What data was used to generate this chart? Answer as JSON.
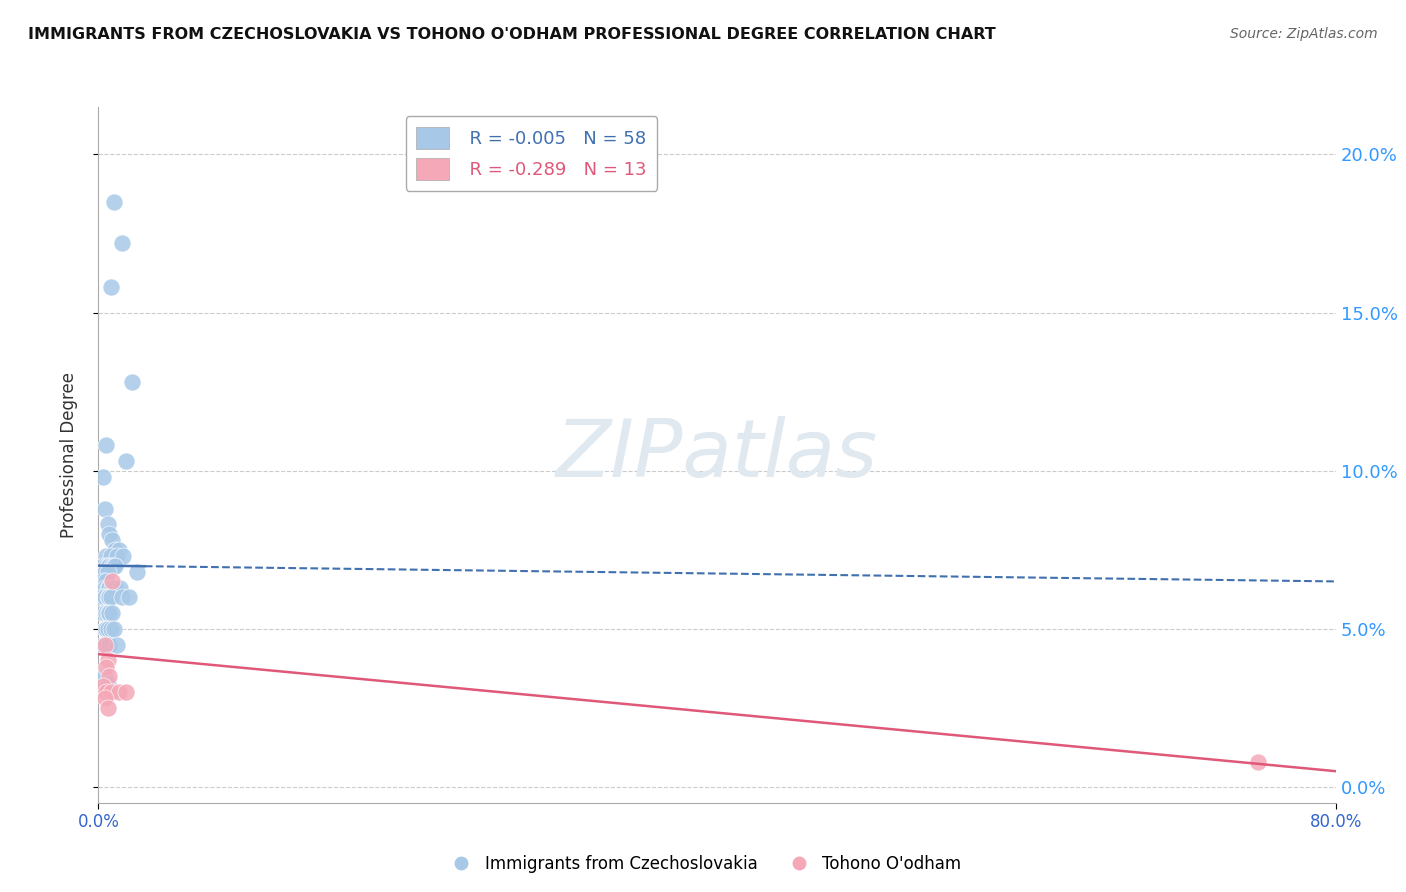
{
  "title": "IMMIGRANTS FROM CZECHOSLOVAKIA VS TOHONO O'ODHAM PROFESSIONAL DEGREE CORRELATION CHART",
  "source": "Source: ZipAtlas.com",
  "ylabel": "Professional Degree",
  "yticks": [
    "0.0%",
    "5.0%",
    "10.0%",
    "15.0%",
    "20.0%"
  ],
  "ytick_vals": [
    0.0,
    5.0,
    10.0,
    15.0,
    20.0
  ],
  "xlim": [
    0.0,
    80.0
  ],
  "ylim": [
    -0.5,
    21.5
  ],
  "legend_blue_r": "R = -0.005",
  "legend_blue_n": "N = 58",
  "legend_pink_r": "R = -0.289",
  "legend_pink_n": "N = 13",
  "blue_color": "#a8c8e8",
  "pink_color": "#f4a8b8",
  "trendline_blue_color": "#4070b0",
  "trendline_pink_color": "#e05878",
  "blue_scatter_x": [
    1.0,
    1.5,
    0.8,
    2.2,
    0.5,
    1.8,
    0.3,
    0.4,
    0.6,
    0.7,
    0.9,
    1.1,
    1.3,
    0.5,
    0.8,
    1.2,
    1.6,
    0.3,
    0.5,
    0.6,
    0.7,
    0.9,
    1.0,
    1.1,
    0.4,
    0.6,
    2.5,
    0.3,
    0.5,
    0.4,
    0.6,
    0.7,
    0.9,
    1.1,
    1.4,
    0.2,
    0.4,
    0.6,
    0.7,
    0.8,
    1.5,
    2.0,
    0.3,
    0.5,
    0.6,
    0.7,
    0.9,
    0.4,
    0.5,
    0.6,
    0.8,
    1.0,
    0.3,
    0.5,
    0.7,
    1.2,
    0.4,
    0.6
  ],
  "blue_scatter_y": [
    18.5,
    17.2,
    15.8,
    12.8,
    10.8,
    10.3,
    9.8,
    8.8,
    8.3,
    8.0,
    7.8,
    7.5,
    7.5,
    7.3,
    7.3,
    7.3,
    7.3,
    7.0,
    7.0,
    7.0,
    7.0,
    7.0,
    7.0,
    7.0,
    6.8,
    6.8,
    6.8,
    6.5,
    6.5,
    6.3,
    6.3,
    6.3,
    6.3,
    6.3,
    6.3,
    6.0,
    6.0,
    6.0,
    6.0,
    6.0,
    6.0,
    6.0,
    5.5,
    5.5,
    5.5,
    5.5,
    5.5,
    5.0,
    5.0,
    5.0,
    5.0,
    5.0,
    4.5,
    4.5,
    4.5,
    4.5,
    3.5,
    3.3
  ],
  "pink_scatter_x": [
    0.4,
    0.6,
    0.5,
    0.7,
    0.9,
    0.3,
    0.5,
    0.8,
    1.3,
    1.8,
    0.4,
    0.6,
    75.0
  ],
  "pink_scatter_y": [
    4.5,
    4.0,
    3.8,
    3.5,
    6.5,
    3.2,
    3.0,
    3.0,
    3.0,
    3.0,
    2.8,
    2.5,
    0.8
  ],
  "blue_trend_x0": 0.0,
  "blue_trend_x1": 80.0,
  "blue_trend_y0": 7.0,
  "blue_trend_y1": 6.5,
  "pink_trend_x0": 0.0,
  "pink_trend_x1": 80.0,
  "pink_trend_y0": 4.2,
  "pink_trend_y1": 0.5,
  "grid_color": "#cccccc",
  "background_color": "#ffffff",
  "watermark_color": "#e0e8f0"
}
